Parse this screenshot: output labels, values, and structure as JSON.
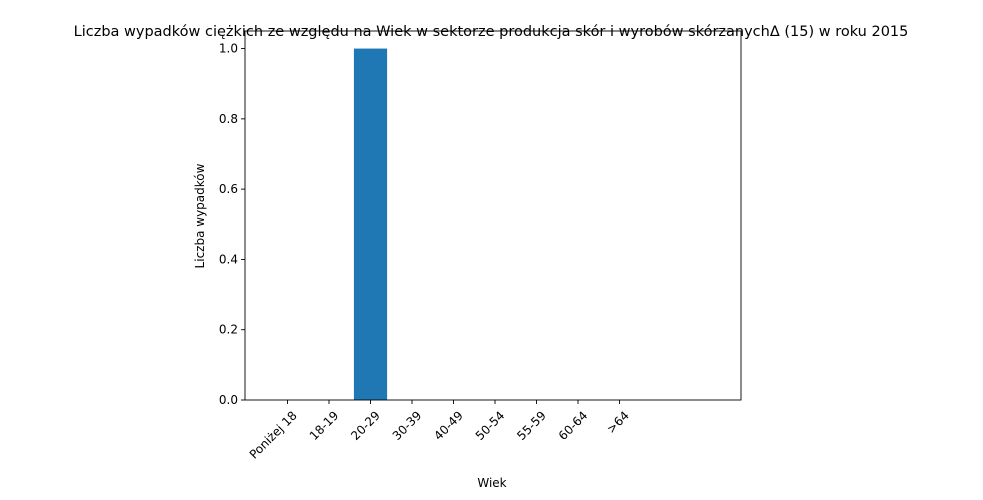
{
  "chart_data": {
    "type": "bar",
    "title": "Liczba wypadków ciężkich ze względu na Wiek w sektorze produkcja skór i wyrobów skórzanychΔ (15) w roku 2015",
    "xlabel": "Wiek",
    "ylabel": "Liczba wypadków",
    "categories": [
      "Poniżej 18",
      "18-19",
      "20-29",
      "30-39",
      "40-49",
      "50-54",
      "55-59",
      "60-64",
      ">64"
    ],
    "values": [
      0,
      0,
      1,
      0,
      0,
      0,
      0,
      0,
      0
    ],
    "ylim": [
      0,
      1.05
    ],
    "yticks": [
      "0.0",
      "0.2",
      "0.4",
      "0.6",
      "0.8",
      "1.0"
    ],
    "grid": false,
    "bar_color": "#1f77b4"
  }
}
